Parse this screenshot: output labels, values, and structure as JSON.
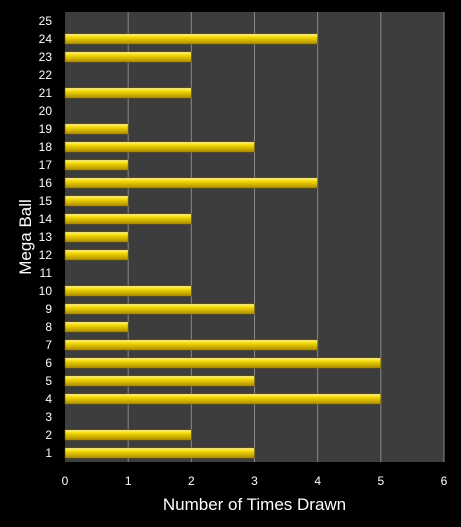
{
  "chart_data": {
    "type": "bar",
    "orientation": "horizontal",
    "title": "",
    "xlabel": "Number of Times Drawn",
    "ylabel": "Mega Ball",
    "xlim": [
      0,
      6
    ],
    "x_ticks": [
      0,
      1,
      2,
      3,
      4,
      5,
      6
    ],
    "grid": "vertical",
    "colors": {
      "background": "#000000",
      "plot_area": "#3d3d3d",
      "bar_fill": "#f2d600",
      "bar_highlight": "#fff6a0",
      "bar_shadow": "#a88a00",
      "gridline": "#8a8a8a",
      "text": "#ffffff"
    },
    "categories": [
      "1",
      "2",
      "3",
      "4",
      "5",
      "6",
      "7",
      "8",
      "9",
      "10",
      "11",
      "12",
      "13",
      "14",
      "15",
      "16",
      "17",
      "18",
      "19",
      "20",
      "21",
      "22",
      "23",
      "24",
      "25"
    ],
    "values": [
      3,
      2,
      0,
      5,
      3,
      5,
      4,
      1,
      3,
      2,
      0,
      1,
      1,
      2,
      1,
      4,
      1,
      3,
      1,
      0,
      2,
      0,
      2,
      4,
      0
    ]
  }
}
